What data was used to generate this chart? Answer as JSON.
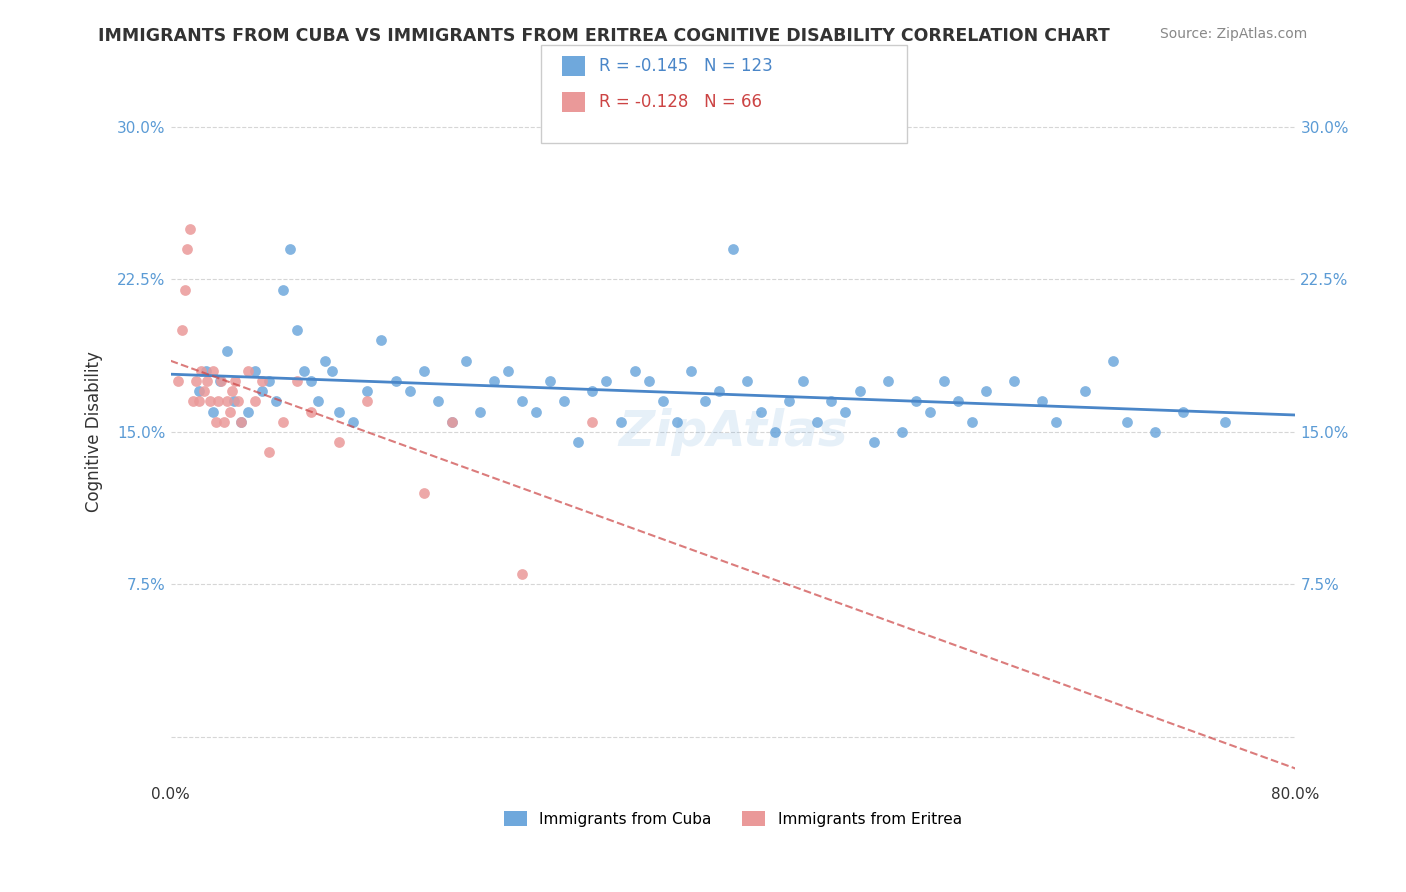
{
  "title": "IMMIGRANTS FROM CUBA VS IMMIGRANTS FROM ERITREA COGNITIVE DISABILITY CORRELATION CHART",
  "source": "Source: ZipAtlas.com",
  "xlabel_label": "",
  "ylabel_label": "Cognitive Disability",
  "xlim": [
    0.0,
    0.8
  ],
  "ylim": [
    -0.02,
    0.32
  ],
  "xticks": [
    0.0,
    0.1,
    0.2,
    0.3,
    0.4,
    0.5,
    0.6,
    0.7,
    0.8
  ],
  "xticklabels": [
    "0.0%",
    "",
    "",
    "",
    "",
    "",
    "",
    "",
    "80.0%"
  ],
  "yticks": [
    0.0,
    0.075,
    0.15,
    0.225,
    0.3
  ],
  "yticklabels": [
    "",
    "7.5%",
    "15.0%",
    "22.5%",
    "30.0%"
  ],
  "cuba_color": "#6fa8dc",
  "eritrea_color": "#ea9999",
  "cuba_line_color": "#4a86c8",
  "eritrea_line_color": "#cc4444",
  "watermark": "ZipAtlas",
  "legend_cuba_R": "-0.145",
  "legend_cuba_N": "123",
  "legend_eritrea_R": "-0.128",
  "legend_eritrea_N": "66",
  "cuba_scatter_x": [
    0.02,
    0.025,
    0.03,
    0.035,
    0.04,
    0.045,
    0.05,
    0.055,
    0.06,
    0.065,
    0.07,
    0.075,
    0.08,
    0.085,
    0.09,
    0.095,
    0.1,
    0.105,
    0.11,
    0.115,
    0.12,
    0.13,
    0.14,
    0.15,
    0.16,
    0.17,
    0.18,
    0.19,
    0.2,
    0.21,
    0.22,
    0.23,
    0.24,
    0.25,
    0.26,
    0.27,
    0.28,
    0.29,
    0.3,
    0.31,
    0.32,
    0.33,
    0.34,
    0.35,
    0.36,
    0.37,
    0.38,
    0.39,
    0.4,
    0.41,
    0.42,
    0.43,
    0.44,
    0.45,
    0.46,
    0.47,
    0.48,
    0.49,
    0.5,
    0.51,
    0.52,
    0.53,
    0.54,
    0.55,
    0.56,
    0.57,
    0.58,
    0.6,
    0.62,
    0.63,
    0.65,
    0.67,
    0.68,
    0.7,
    0.72,
    0.75
  ],
  "cuba_scatter_y": [
    0.17,
    0.18,
    0.16,
    0.175,
    0.19,
    0.165,
    0.155,
    0.16,
    0.18,
    0.17,
    0.175,
    0.165,
    0.22,
    0.24,
    0.2,
    0.18,
    0.175,
    0.165,
    0.185,
    0.18,
    0.16,
    0.155,
    0.17,
    0.195,
    0.175,
    0.17,
    0.18,
    0.165,
    0.155,
    0.185,
    0.16,
    0.175,
    0.18,
    0.165,
    0.16,
    0.175,
    0.165,
    0.145,
    0.17,
    0.175,
    0.155,
    0.18,
    0.175,
    0.165,
    0.155,
    0.18,
    0.165,
    0.17,
    0.24,
    0.175,
    0.16,
    0.15,
    0.165,
    0.175,
    0.155,
    0.165,
    0.16,
    0.17,
    0.145,
    0.175,
    0.15,
    0.165,
    0.16,
    0.175,
    0.165,
    0.155,
    0.17,
    0.175,
    0.165,
    0.155,
    0.17,
    0.185,
    0.155,
    0.15,
    0.16,
    0.155
  ],
  "eritrea_scatter_x": [
    0.005,
    0.008,
    0.01,
    0.012,
    0.014,
    0.016,
    0.018,
    0.02,
    0.022,
    0.024,
    0.026,
    0.028,
    0.03,
    0.032,
    0.034,
    0.036,
    0.038,
    0.04,
    0.042,
    0.044,
    0.046,
    0.048,
    0.05,
    0.055,
    0.06,
    0.065,
    0.07,
    0.08,
    0.09,
    0.1,
    0.12,
    0.14,
    0.18,
    0.2,
    0.25,
    0.3
  ],
  "eritrea_scatter_y": [
    0.175,
    0.2,
    0.22,
    0.24,
    0.25,
    0.165,
    0.175,
    0.165,
    0.18,
    0.17,
    0.175,
    0.165,
    0.18,
    0.155,
    0.165,
    0.175,
    0.155,
    0.165,
    0.16,
    0.17,
    0.175,
    0.165,
    0.155,
    0.18,
    0.165,
    0.175,
    0.14,
    0.155,
    0.175,
    0.16,
    0.145,
    0.165,
    0.12,
    0.155,
    0.08,
    0.155
  ]
}
